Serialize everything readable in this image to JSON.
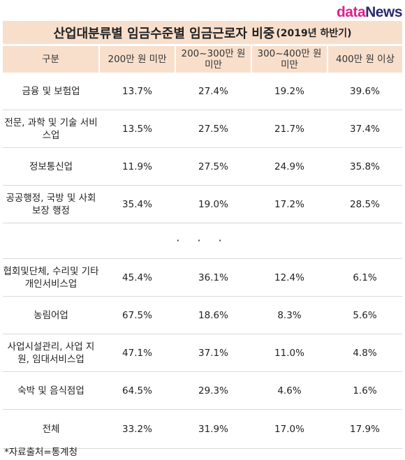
{
  "logo": {
    "d": "d",
    "ata": "ata",
    "news": "News"
  },
  "title": {
    "main": "산업대분류별 임금수준별 임금근로자 비중",
    "sub": "(2019년 하반기)"
  },
  "columns": [
    "구분",
    "200만 원 미만",
    "200~300만 원 미만",
    "300~400만 원 미만",
    "400만 원 이상"
  ],
  "rows": [
    {
      "cat": "금융 및 보험업",
      "v1": "13.7%",
      "v2": "27.4%",
      "v3": "19.2%",
      "v4": "39.6%"
    },
    {
      "cat": "전문, 과학 및 기술 서비스업",
      "v1": "13.5%",
      "v2": "27.5%",
      "v3": "21.7%",
      "v4": "37.4%"
    },
    {
      "cat": "정보통신업",
      "v1": "11.9%",
      "v2": "27.5%",
      "v3": "24.9%",
      "v4": "35.8%"
    },
    {
      "cat": "공공행정, 국방 및 사회보장 행정",
      "v1": "35.4%",
      "v2": "19.0%",
      "v3": "17.2%",
      "v4": "28.5%"
    }
  ],
  "ellipsis": "· · ·",
  "rows2": [
    {
      "cat": "협회및단체, 수리및 기타개인서비스업",
      "v1": "45.4%",
      "v2": "36.1%",
      "v3": "12.4%",
      "v4": "6.1%"
    },
    {
      "cat": "농림어업",
      "v1": "67.5%",
      "v2": "18.6%",
      "v3": "8.3%",
      "v4": "5.6%"
    },
    {
      "cat": "사업시설관리, 사업 지원, 임대서비스업",
      "v1": "47.1%",
      "v2": "37.1%",
      "v3": "11.0%",
      "v4": "4.8%"
    },
    {
      "cat": "숙박 및 음식점업",
      "v1": "64.5%",
      "v2": "29.3%",
      "v3": "4.6%",
      "v4": "1.6%"
    }
  ],
  "total": {
    "cat": "전체",
    "v1": "33.2%",
    "v2": "31.9%",
    "v3": "17.0%",
    "v4": "17.9%"
  },
  "source": "*자료출처=통계청",
  "colors": {
    "header_bg": "#f8dfcc",
    "logo_pink": "#e0218a",
    "logo_navy": "#2b2b6f"
  }
}
